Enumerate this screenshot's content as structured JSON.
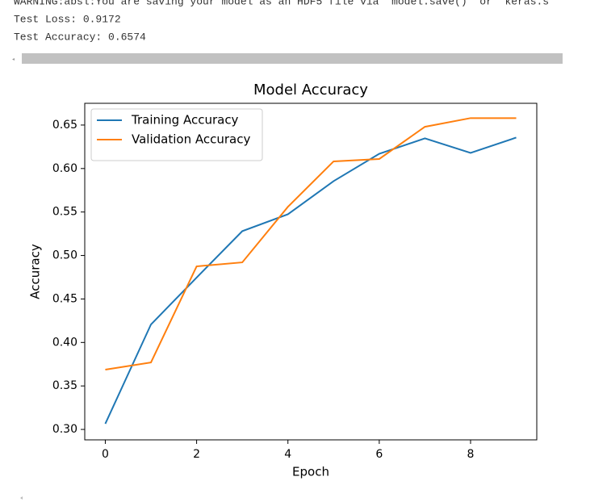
{
  "console": {
    "lines": [
      "WARNING:absl:You are saving your model as an HDF5 file via `model.save()` or `keras.s",
      "Test Loss: 0.9172",
      "Test Accuracy: 0.6574"
    ]
  },
  "chart_data": {
    "type": "line",
    "title": "Model Accuracy",
    "x_label": "Epoch",
    "y_label": "Accuracy",
    "x": [
      0,
      1,
      2,
      3,
      4,
      5,
      6,
      7,
      8,
      9
    ],
    "series": [
      {
        "name": "Training Accuracy",
        "color": "#1f77b4",
        "values": [
          0.3065,
          0.4207,
          0.4746,
          0.528,
          0.5474,
          0.5855,
          0.617,
          0.6347,
          0.618,
          0.6356
        ]
      },
      {
        "name": "Validation Accuracy",
        "color": "#ff7f0e",
        "values": [
          0.3687,
          0.377,
          0.4875,
          0.4921,
          0.556,
          0.6082,
          0.611,
          0.648,
          0.658,
          0.658
        ]
      }
    ],
    "xlim": [
      -0.45,
      9.45
    ],
    "ylim": [
      0.288,
      0.675
    ],
    "xticks": [
      0,
      2,
      4,
      6,
      8
    ],
    "yticks": [
      {
        "value": 0.3,
        "label": "0.30"
      },
      0.35,
      {
        "value": 0.4,
        "label": "0.40"
      },
      0.45,
      {
        "value": 0.5,
        "label": "0.50"
      },
      0.55,
      {
        "value": 0.6,
        "label": "0.60"
      },
      0.65
    ],
    "legend": "upper left",
    "grid": false
  }
}
